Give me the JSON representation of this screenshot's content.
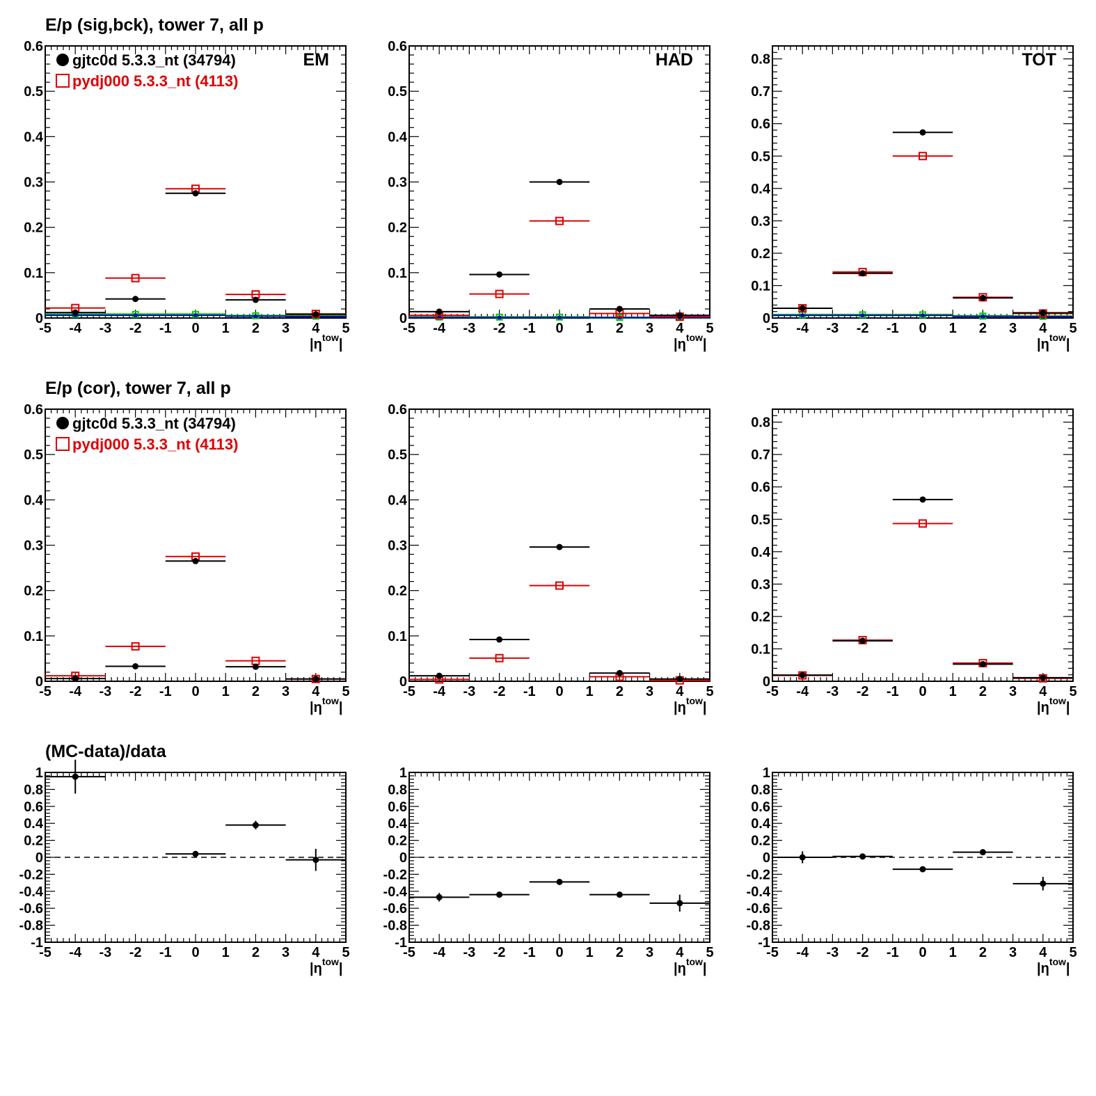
{
  "colors": {
    "data": "#000000",
    "mc": "#dd0000",
    "bck_green": "#00cc00",
    "bck_blue": "#0000cc",
    "frame": "#000000"
  },
  "row_titles": [
    "E/p (sig,bck), tower 7, all p",
    "E/p (cor), tower 7, all p",
    "(MC-data)/data"
  ],
  "legend": {
    "data": "gjtc0d 5.3.3_nt (34794)",
    "mc": "pydj000 5.3.3_nt (4113)"
  },
  "x_axis": {
    "title_main": "|η",
    "title_sup": "tow",
    "title_end": "|",
    "range": [
      -5,
      5
    ],
    "tick_labels": [
      "-5",
      "-4",
      "-3",
      "-2",
      "-1",
      "0",
      "1",
      "2",
      "3",
      "4",
      "5"
    ]
  },
  "chart_data": [
    {
      "type": "scatter",
      "panel": "EM",
      "row": 0,
      "tag": "EM",
      "show_legend": true,
      "ylim": [
        0,
        0.6
      ],
      "y_tick_labels": [
        "0",
        "0.1",
        "0.2",
        "0.3",
        "0.4",
        "0.5",
        "0.6"
      ],
      "series": [
        {
          "name": "gjtc0d 5.3.3_nt (34794)",
          "style": "data",
          "x": [
            -4,
            -2,
            0,
            2,
            4
          ],
          "xerr": 1,
          "y": [
            0.012,
            0.042,
            0.275,
            0.04,
            0.008
          ]
        },
        {
          "name": "pydj000 5.3.3_nt (4113)",
          "style": "mc",
          "x": [
            -4,
            -2,
            0,
            2,
            4
          ],
          "xerr": 1,
          "y": [
            0.022,
            0.088,
            0.285,
            0.052,
            0.009
          ]
        },
        {
          "style": "bck_green",
          "x": [
            -4,
            -2,
            0,
            2,
            4
          ],
          "xerr": 1,
          "y": [
            0.008,
            0.008,
            0.008,
            0.005,
            0.004
          ]
        },
        {
          "style": "bck_blue",
          "x": [
            -4,
            -2,
            0,
            2,
            4
          ],
          "xerr": 1,
          "y": [
            0.006,
            0.006,
            0.006,
            0.004,
            0.003
          ]
        }
      ]
    },
    {
      "type": "scatter",
      "panel": "HAD",
      "row": 0,
      "tag": "HAD",
      "ylim": [
        0,
        0.6
      ],
      "y_tick_labels": [
        "0",
        "0.1",
        "0.2",
        "0.3",
        "0.4",
        "0.5",
        "0.6"
      ],
      "series": [
        {
          "style": "data",
          "x": [
            -4,
            -2,
            0,
            2,
            4
          ],
          "xerr": 1,
          "y": [
            0.014,
            0.096,
            0.3,
            0.02,
            0.006
          ]
        },
        {
          "style": "mc",
          "x": [
            -4,
            -2,
            0,
            2,
            4
          ],
          "xerr": 1,
          "y": [
            0.006,
            0.053,
            0.214,
            0.01,
            0.003
          ]
        },
        {
          "style": "bck_green",
          "x": [
            -4,
            -2,
            0,
            2,
            4
          ],
          "xerr": 1,
          "y": [
            0.002,
            0.002,
            0.002,
            0.001,
            0.001
          ]
        },
        {
          "style": "bck_blue",
          "x": [
            -4,
            -2,
            0,
            2,
            4
          ],
          "xerr": 1,
          "y": [
            0.001,
            0.001,
            0.001,
            0.001,
            0.001
          ]
        }
      ]
    },
    {
      "type": "scatter",
      "panel": "TOT",
      "row": 0,
      "tag": "TOT",
      "ylim": [
        0,
        0.84
      ],
      "y_tick_labels": [
        "0",
        "0.1",
        "0.2",
        "0.3",
        "0.4",
        "0.5",
        "0.6",
        "0.7",
        "0.8"
      ],
      "series": [
        {
          "style": "data",
          "x": [
            -4,
            -2,
            0,
            2,
            4
          ],
          "xerr": 1,
          "y": [
            0.03,
            0.138,
            0.573,
            0.062,
            0.016
          ]
        },
        {
          "style": "mc",
          "x": [
            -4,
            -2,
            0,
            2,
            4
          ],
          "xerr": 1,
          "y": [
            0.03,
            0.142,
            0.5,
            0.064,
            0.014
          ]
        },
        {
          "style": "bck_green",
          "x": [
            -4,
            -2,
            0,
            2,
            4
          ],
          "xerr": 1,
          "y": [
            0.01,
            0.01,
            0.01,
            0.006,
            0.005
          ]
        },
        {
          "style": "bck_blue",
          "x": [
            -4,
            -2,
            0,
            2,
            4
          ],
          "xerr": 1,
          "y": [
            0.008,
            0.008,
            0.008,
            0.005,
            0.004
          ]
        }
      ]
    },
    {
      "type": "scatter",
      "panel": "EM",
      "row": 1,
      "show_legend": true,
      "ylim": [
        0,
        0.6
      ],
      "y_tick_labels": [
        "0",
        "0.1",
        "0.2",
        "0.3",
        "0.4",
        "0.5",
        "0.6"
      ],
      "series": [
        {
          "name": "gjtc0d 5.3.3_nt (34794)",
          "style": "data",
          "x": [
            -4,
            -2,
            0,
            2,
            4
          ],
          "xerr": 1,
          "y": [
            0.006,
            0.033,
            0.265,
            0.032,
            0.005
          ]
        },
        {
          "name": "pydj000 5.3.3_nt (4113)",
          "style": "mc",
          "x": [
            -4,
            -2,
            0,
            2,
            4
          ],
          "xerr": 1,
          "y": [
            0.012,
            0.077,
            0.275,
            0.045,
            0.005
          ]
        }
      ]
    },
    {
      "type": "scatter",
      "panel": "HAD",
      "row": 1,
      "ylim": [
        0,
        0.6
      ],
      "y_tick_labels": [
        "0",
        "0.1",
        "0.2",
        "0.3",
        "0.4",
        "0.5",
        "0.6"
      ],
      "series": [
        {
          "style": "data",
          "x": [
            -4,
            -2,
            0,
            2,
            4
          ],
          "xerr": 1,
          "y": [
            0.012,
            0.092,
            0.296,
            0.018,
            0.005
          ]
        },
        {
          "style": "mc",
          "x": [
            -4,
            -2,
            0,
            2,
            4
          ],
          "xerr": 1,
          "y": [
            0.004,
            0.051,
            0.211,
            0.01,
            0.002
          ]
        }
      ]
    },
    {
      "type": "scatter",
      "panel": "TOT",
      "row": 1,
      "ylim": [
        0,
        0.84
      ],
      "y_tick_labels": [
        "0",
        "0.1",
        "0.2",
        "0.3",
        "0.4",
        "0.5",
        "0.6",
        "0.7",
        "0.8"
      ],
      "series": [
        {
          "style": "data",
          "x": [
            -4,
            -2,
            0,
            2,
            4
          ],
          "xerr": 1,
          "y": [
            0.019,
            0.125,
            0.561,
            0.053,
            0.011
          ]
        },
        {
          "style": "mc",
          "x": [
            -4,
            -2,
            0,
            2,
            4
          ],
          "xerr": 1,
          "y": [
            0.018,
            0.127,
            0.487,
            0.056,
            0.009
          ]
        }
      ]
    },
    {
      "type": "scatter",
      "panel": "EM",
      "row": 2,
      "ratio": true,
      "ylim": [
        -1,
        1
      ],
      "y_tick_labels": [
        "-1",
        "-0.8",
        "-0.6",
        "-0.4",
        "-0.2",
        "0",
        "0.2",
        "0.4",
        "0.6",
        "0.8",
        "1"
      ],
      "series": [
        {
          "style": "data",
          "x": [
            -4,
            0,
            2,
            4
          ],
          "xerr": 1,
          "y": [
            0.95,
            0.04,
            0.38,
            -0.03
          ],
          "yerr": [
            0.2,
            0.02,
            0.05,
            0.13
          ]
        }
      ]
    },
    {
      "type": "scatter",
      "panel": "HAD",
      "row": 2,
      "ratio": true,
      "ylim": [
        -1,
        1
      ],
      "y_tick_labels": [
        "-1",
        "-0.8",
        "-0.6",
        "-0.4",
        "-0.2",
        "0",
        "0.2",
        "0.4",
        "0.6",
        "0.8",
        "1"
      ],
      "series": [
        {
          "style": "data",
          "x": [
            -4,
            -2,
            0,
            2,
            4
          ],
          "xerr": 1,
          "y": [
            -0.47,
            -0.44,
            -0.29,
            -0.44,
            -0.54
          ],
          "yerr": [
            0.05,
            0.03,
            0.02,
            0.03,
            0.1
          ]
        }
      ]
    },
    {
      "type": "scatter",
      "panel": "TOT",
      "row": 2,
      "ratio": true,
      "ylim": [
        -1,
        1
      ],
      "y_tick_labels": [
        "-1",
        "-0.8",
        "-0.6",
        "-0.4",
        "-0.2",
        "0",
        "0.2",
        "0.4",
        "0.6",
        "0.8",
        "1"
      ],
      "series": [
        {
          "style": "data",
          "x": [
            -4,
            -2,
            0,
            2,
            4
          ],
          "xerr": 1,
          "y": [
            0.0,
            0.01,
            -0.14,
            0.06,
            -0.31
          ],
          "yerr": [
            0.07,
            0.02,
            0.02,
            0.02,
            0.08
          ]
        }
      ]
    }
  ]
}
